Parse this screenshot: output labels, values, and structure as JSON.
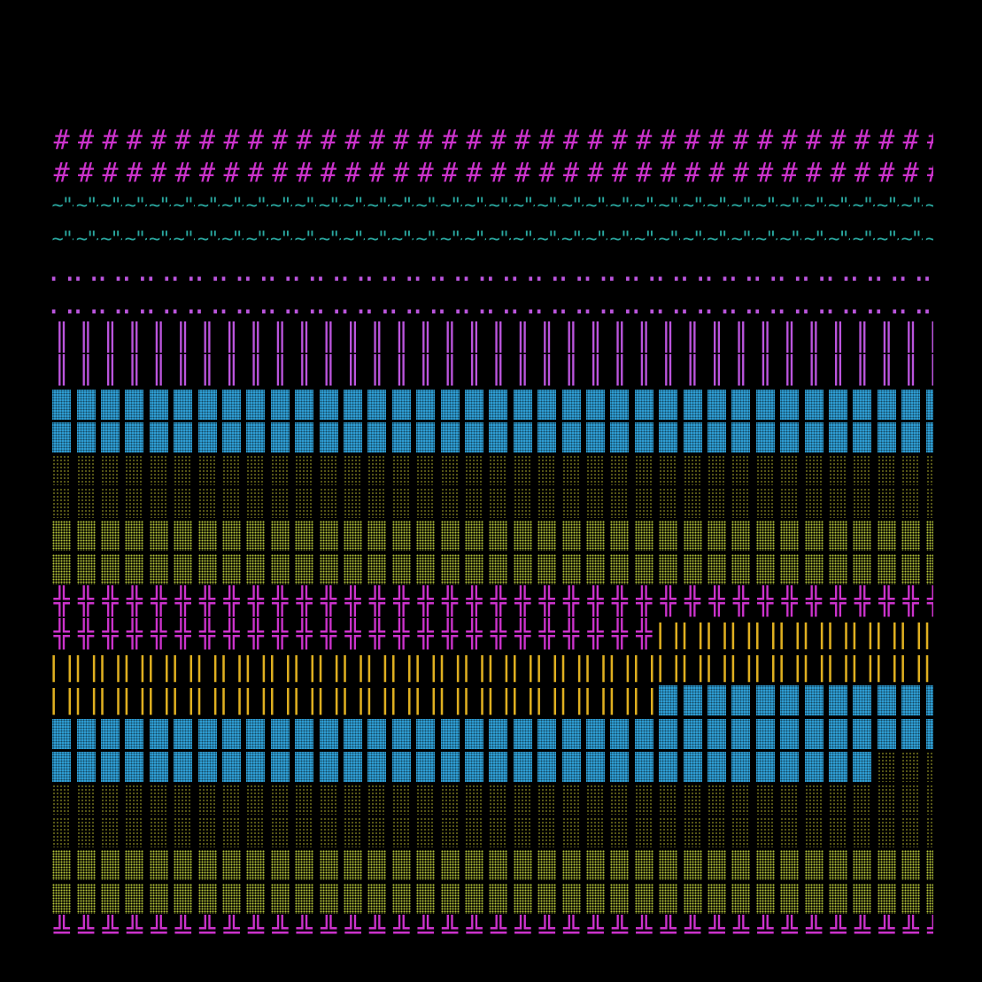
{
  "colors": {
    "background": "#000000",
    "magenta": "#cc33cc",
    "violet": "#bb55dd",
    "cyan": "#2aa8a0",
    "blue": "#2f9fd6",
    "olive": "#a8a82a",
    "lime": "#b8c83a",
    "amber": "#e0b020"
  },
  "rows": [
    {
      "segments": [
        {
          "glyph": "#",
          "color": "magenta"
        }
      ]
    },
    {
      "segments": [
        {
          "glyph": "#",
          "color": "magenta"
        }
      ]
    },
    {
      "segments": [
        {
          "glyph": "'~\"~",
          "color": "cyan",
          "text": true
        }
      ]
    },
    {
      "segments": [
        {
          "glyph": "'~\"~",
          "color": "cyan",
          "text": true
        }
      ]
    },
    {
      "segments": [
        {
          "glyph": "..",
          "color": "violet"
        }
      ]
    },
    {
      "segments": [
        {
          "glyph": "..",
          "color": "violet"
        }
      ]
    },
    {
      "segments": [
        {
          "glyph": "║",
          "color": "violet"
        }
      ]
    },
    {
      "segments": [
        {
          "glyph": "║",
          "color": "violet"
        }
      ]
    },
    {
      "segments": [
        {
          "block": "dense",
          "color": "blue"
        }
      ]
    },
    {
      "segments": [
        {
          "block": "dense",
          "color": "blue"
        }
      ]
    },
    {
      "segments": [
        {
          "block": "light",
          "color": "olive"
        }
      ]
    },
    {
      "segments": [
        {
          "block": "light",
          "color": "olive"
        }
      ]
    },
    {
      "segments": [
        {
          "block": "medium",
          "color": "lime"
        }
      ]
    },
    {
      "segments": [
        {
          "block": "medium",
          "color": "lime"
        }
      ]
    },
    {
      "segments": [
        {
          "glyph": "╬",
          "color": "magenta"
        }
      ]
    },
    {
      "segments": [
        {
          "glyph": "╬",
          "color": "magenta",
          "count": 25
        },
        {
          "glyph": "||",
          "color": "amber"
        }
      ]
    },
    {
      "segments": [
        {
          "glyph": "||",
          "color": "amber"
        }
      ]
    },
    {
      "segments": [
        {
          "glyph": "||",
          "color": "amber",
          "count": 25
        },
        {
          "block": "dense",
          "color": "blue"
        }
      ]
    },
    {
      "segments": [
        {
          "block": "dense",
          "color": "blue"
        }
      ]
    },
    {
      "segments": [
        {
          "block": "dense",
          "color": "blue",
          "count": 34
        },
        {
          "block": "light",
          "color": "olive"
        }
      ]
    },
    {
      "segments": [
        {
          "block": "light",
          "color": "olive"
        }
      ]
    },
    {
      "segments": [
        {
          "block": "light",
          "color": "olive"
        }
      ]
    },
    {
      "segments": [
        {
          "block": "medium",
          "color": "lime"
        }
      ]
    },
    {
      "segments": [
        {
          "block": "medium",
          "color": "lime"
        }
      ]
    },
    {
      "segments": [
        {
          "glyph": "╩",
          "color": "magenta"
        }
      ]
    }
  ]
}
